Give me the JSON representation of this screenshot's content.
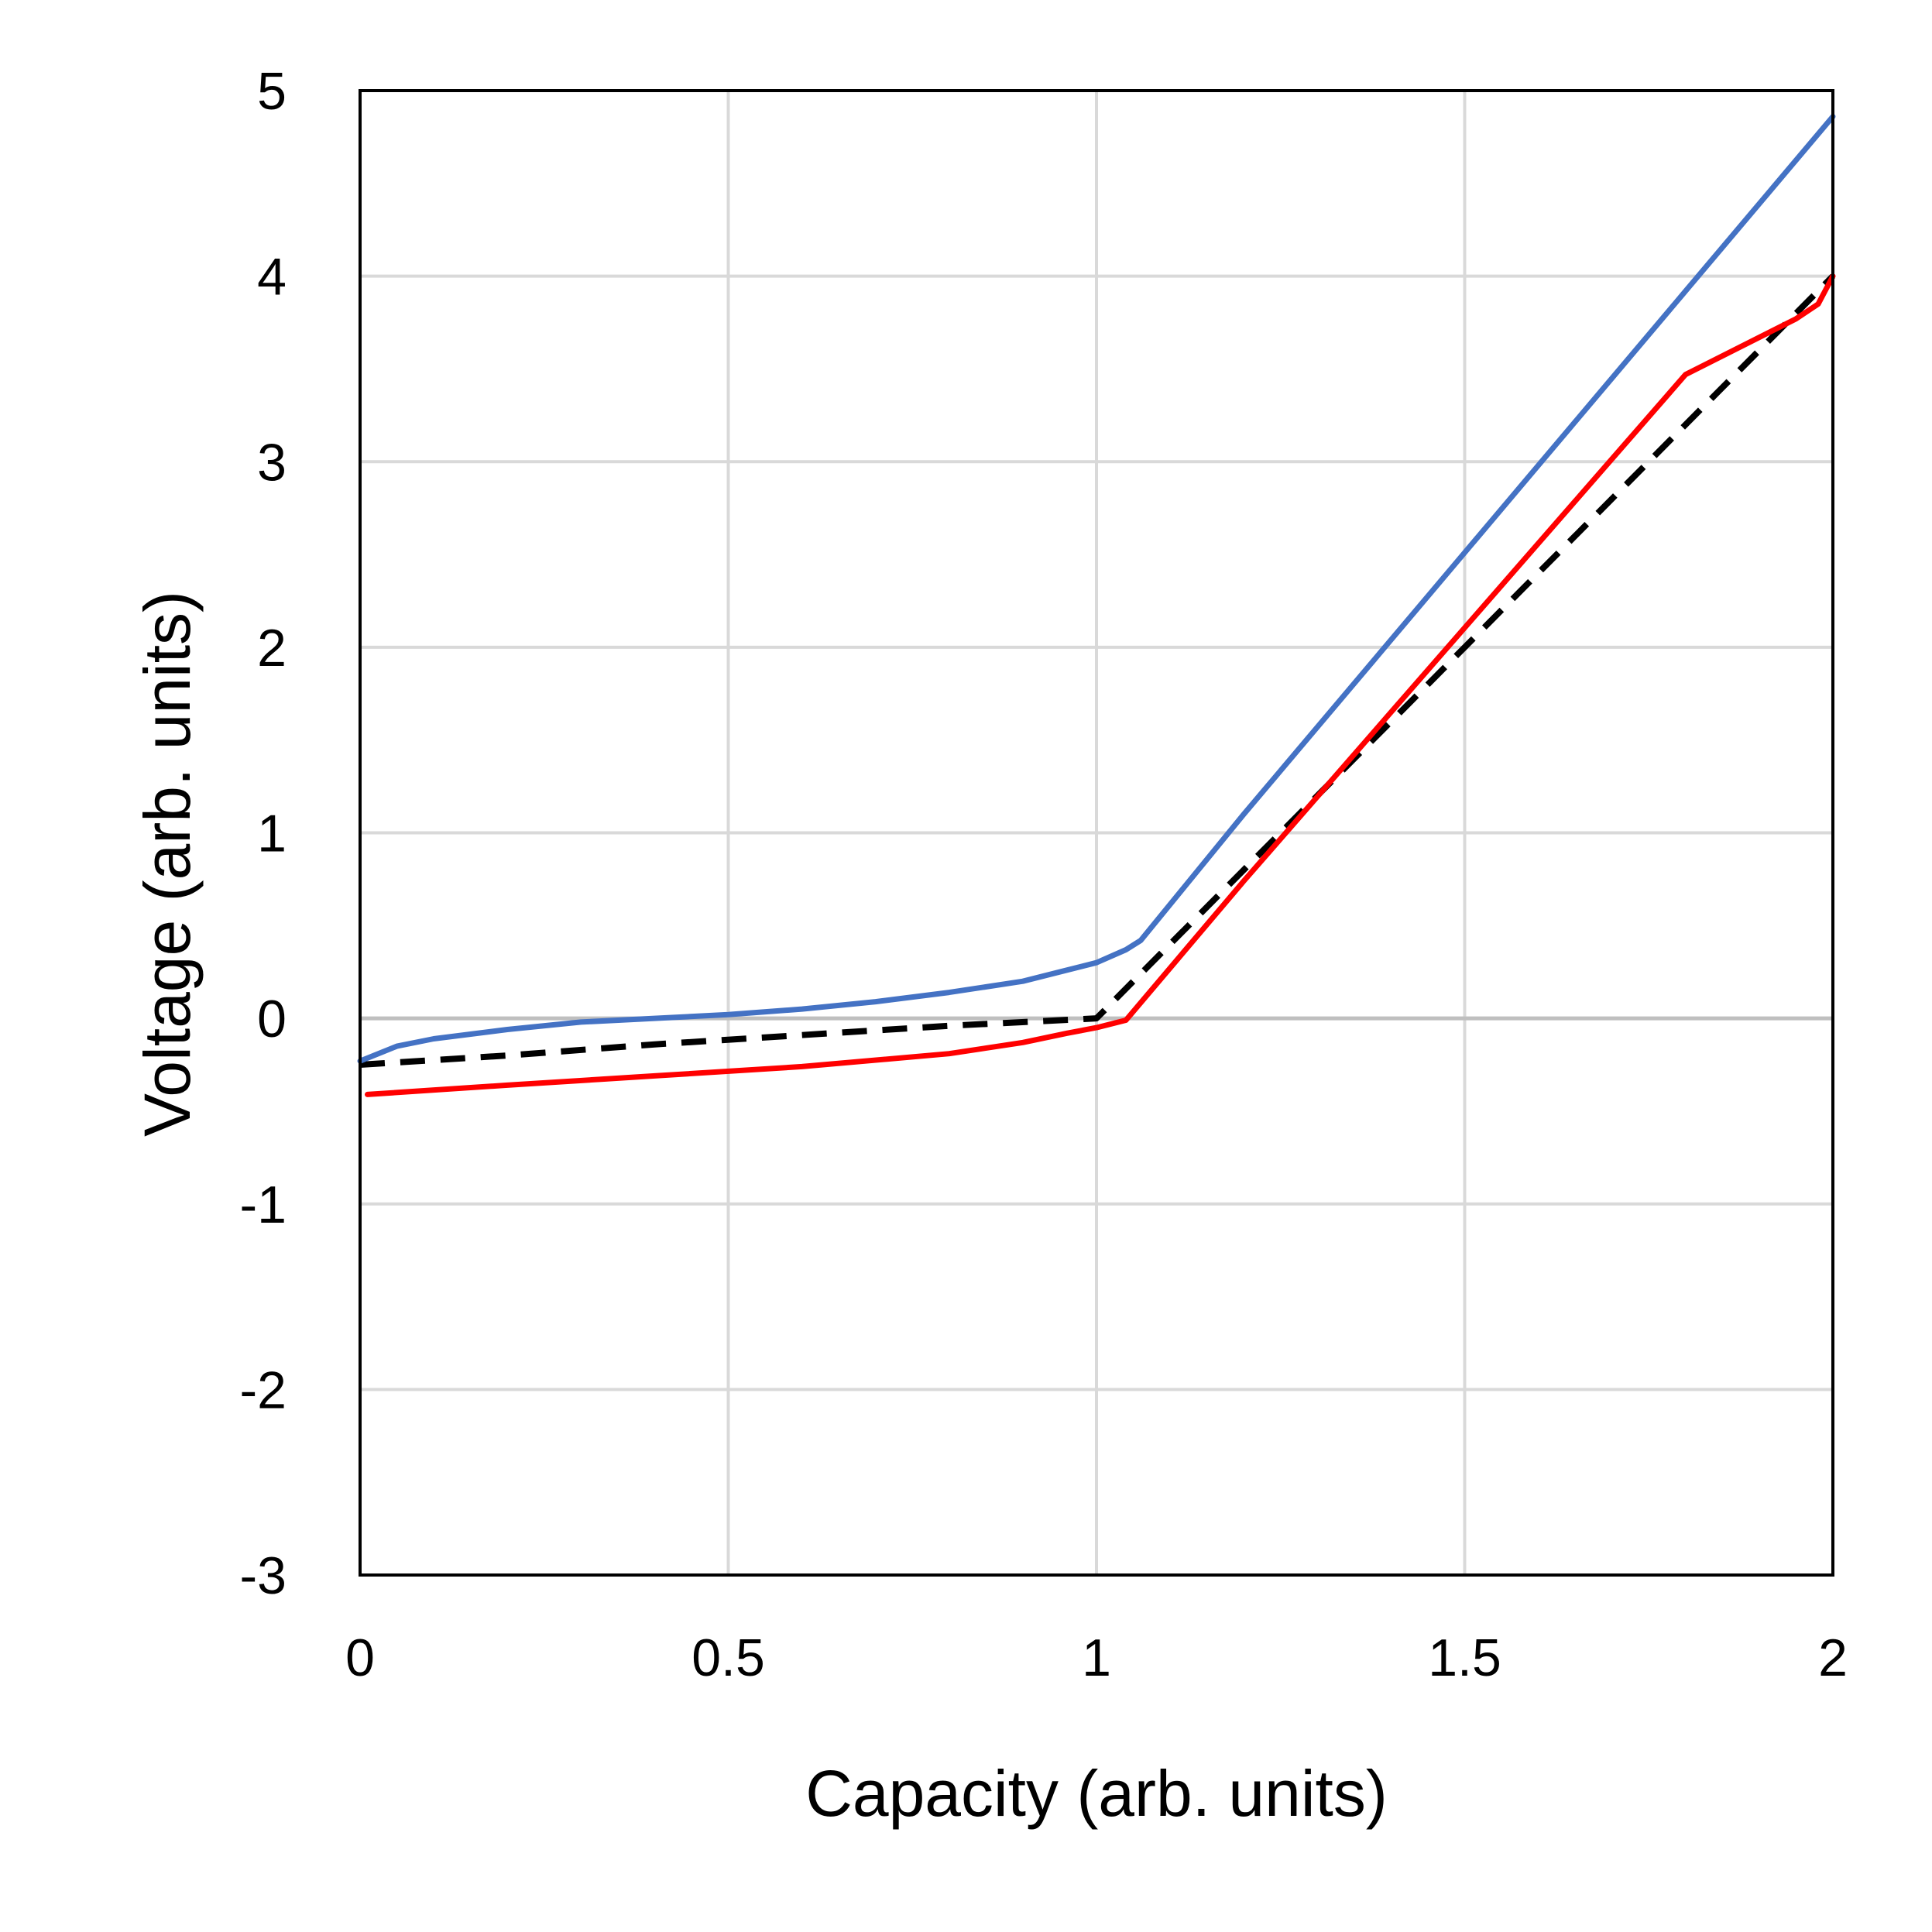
{
  "chart_data": {
    "type": "line",
    "title": "",
    "xlabel": "Capacity (arb. units)",
    "ylabel": "Voltage (arb. units)",
    "xlim": [
      0,
      2
    ],
    "ylim": [
      -3,
      5
    ],
    "x_ticks": [
      0,
      0.5,
      1,
      1.5,
      2
    ],
    "y_ticks": [
      -3,
      -2,
      -1,
      0,
      1,
      2,
      3,
      4,
      5
    ],
    "x_tick_labels": [
      "0",
      "0.5",
      "1",
      "1.5",
      "2"
    ],
    "y_tick_labels": [
      "-3",
      "-2",
      "-1",
      "0",
      "1",
      "2",
      "3",
      "4",
      "5"
    ],
    "grid": true,
    "zero_line": true,
    "legend": "none",
    "series": [
      {
        "color": "#4472C4",
        "style": "solid",
        "x": [
          0.0,
          0.05,
          0.1,
          0.2,
          0.3,
          0.4,
          0.5,
          0.6,
          0.7,
          0.8,
          0.9,
          0.95,
          1.0,
          1.04,
          1.06,
          1.2,
          1.4,
          1.6,
          1.8,
          2.0
        ],
        "y": [
          -0.23,
          -0.15,
          -0.11,
          -0.06,
          -0.02,
          0.0,
          0.02,
          0.05,
          0.09,
          0.14,
          0.2,
          0.25,
          0.3,
          0.37,
          0.42,
          1.1,
          2.04,
          2.98,
          3.92,
          4.86
        ]
      },
      {
        "color": "#000000",
        "style": "dashed",
        "x": [
          0.0,
          0.2,
          0.4,
          0.6,
          0.8,
          1.0,
          1.2,
          1.4,
          1.6,
          1.8,
          2.0
        ],
        "y": [
          -0.25,
          -0.2,
          -0.14,
          -0.09,
          -0.04,
          0.0,
          0.8,
          1.6,
          2.4,
          3.2,
          4.0
        ]
      },
      {
        "color": "#FF0000",
        "style": "solid",
        "x": [
          0.01,
          0.2,
          0.4,
          0.6,
          0.8,
          0.9,
          0.96,
          1.0,
          1.04,
          1.2,
          1.4,
          1.6,
          1.8,
          1.95,
          1.98,
          2.0
        ],
        "y": [
          -0.41,
          -0.36,
          -0.31,
          -0.26,
          -0.19,
          -0.13,
          -0.08,
          -0.05,
          -0.01,
          0.74,
          1.65,
          2.56,
          3.47,
          3.77,
          3.85,
          4.0
        ]
      }
    ]
  }
}
